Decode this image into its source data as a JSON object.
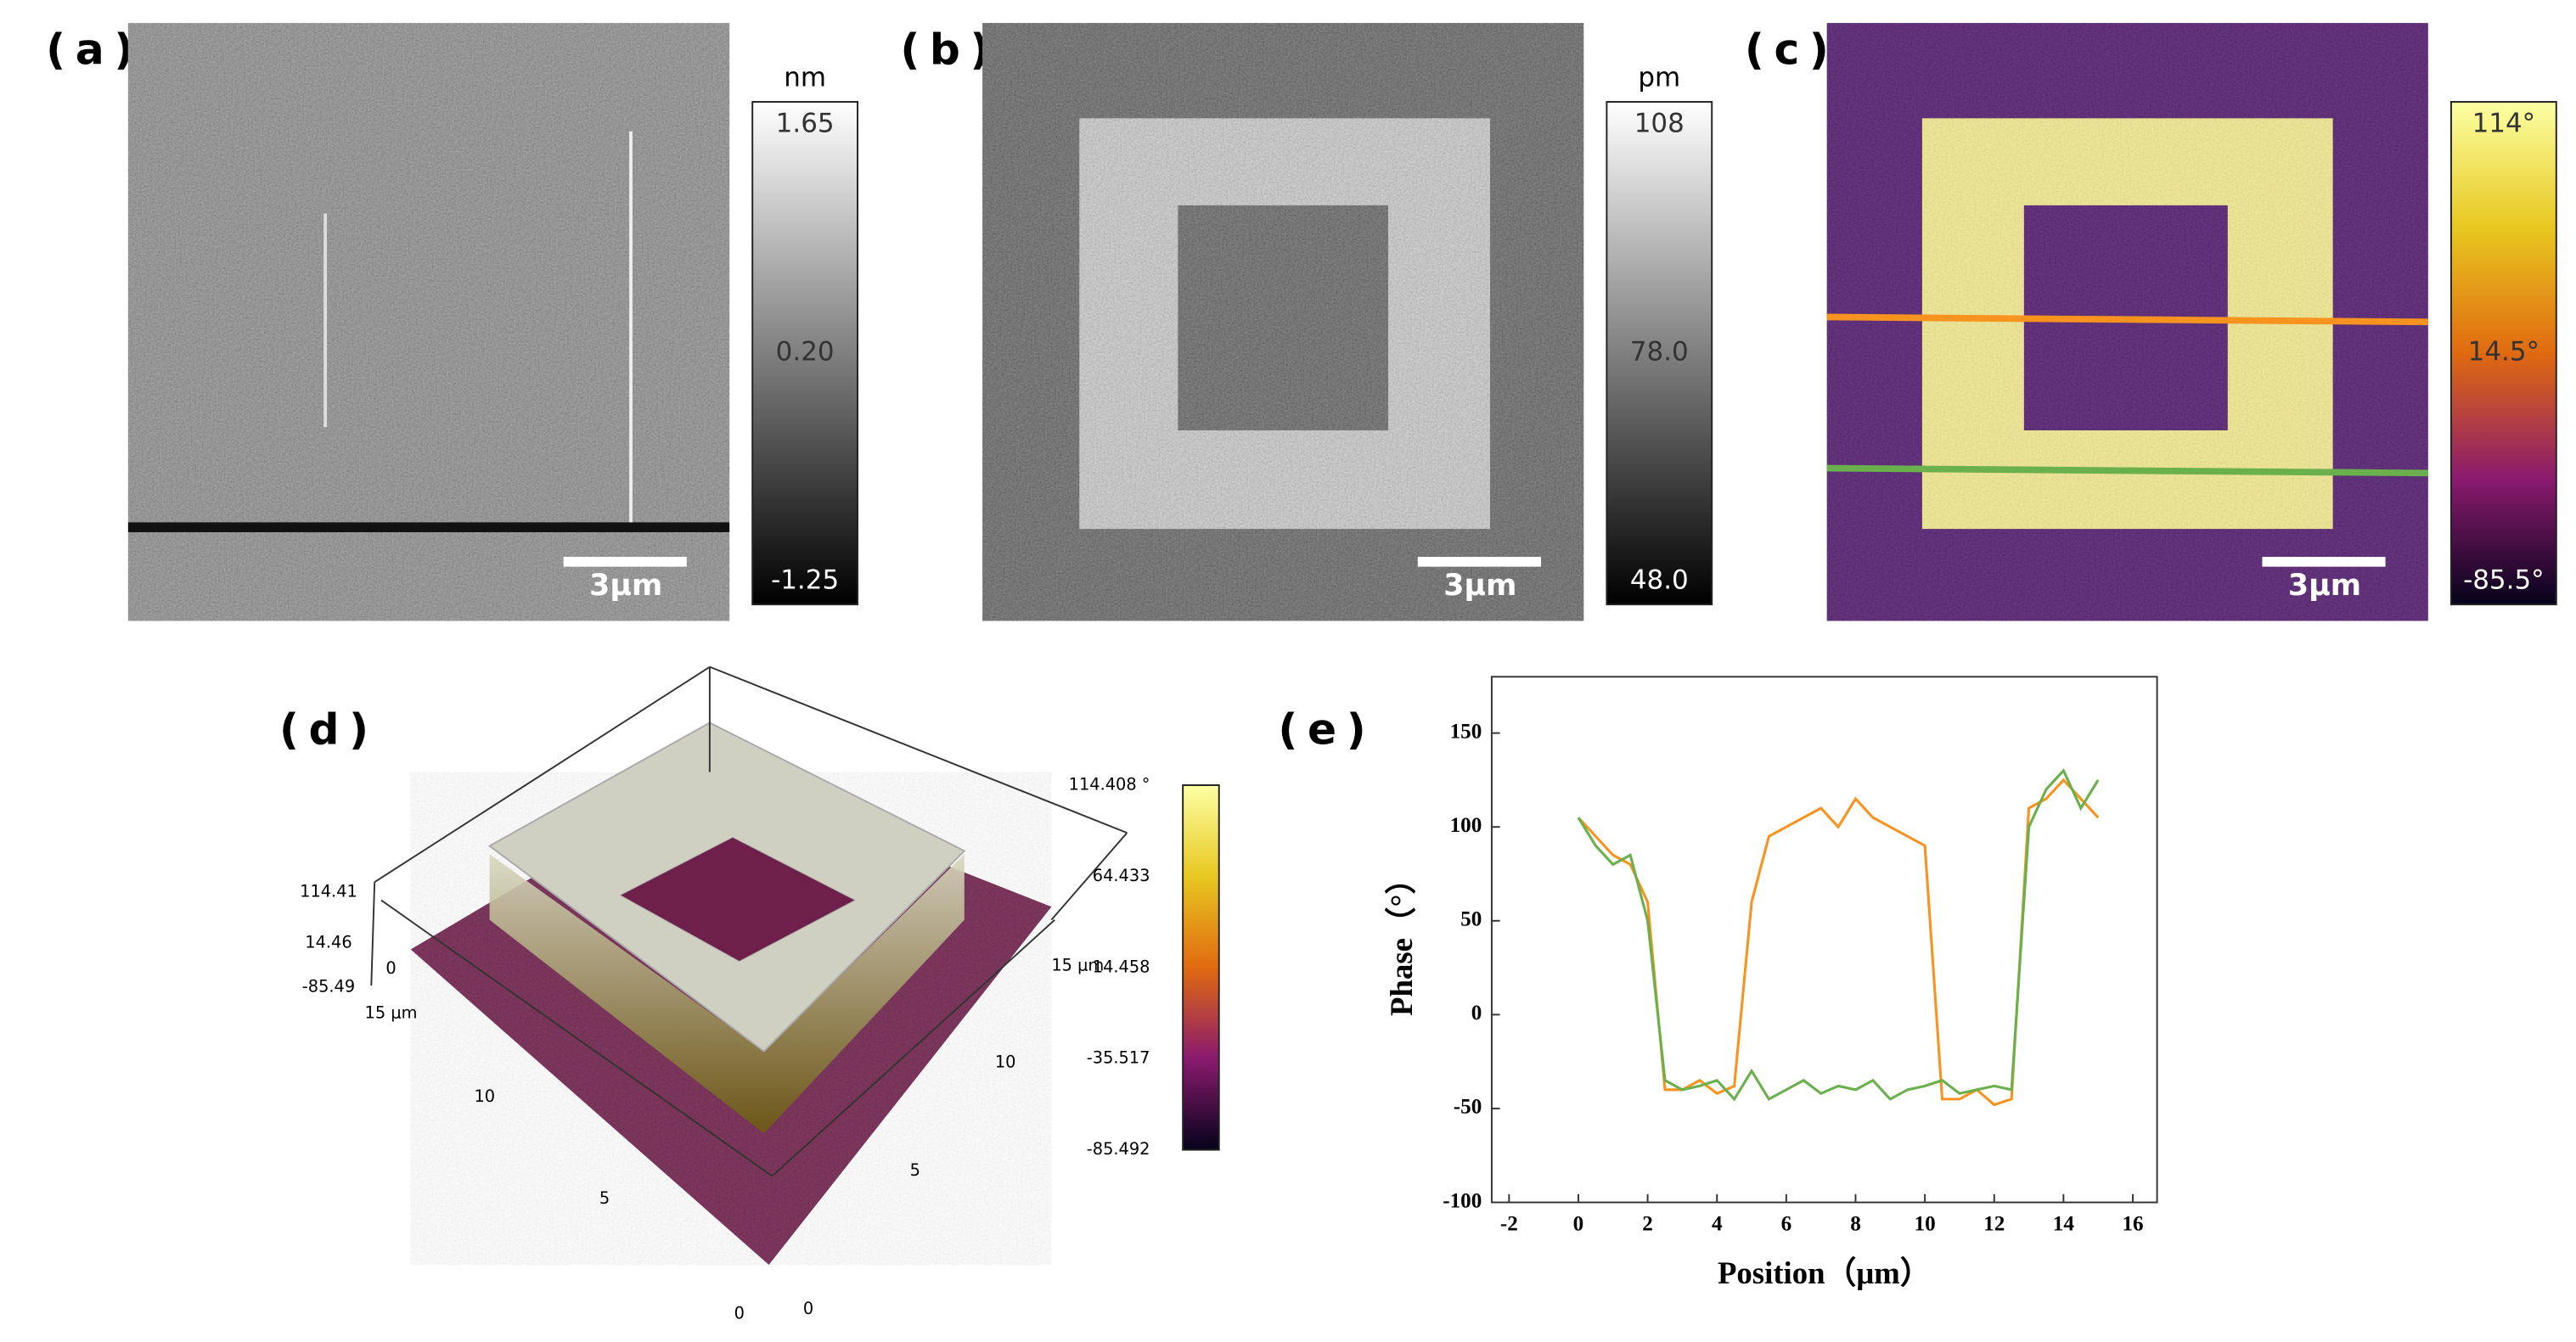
{
  "panels": [
    {
      "label": "(a)",
      "unit": "nm",
      "colorbar_ticks": [
        "1.65",
        "0.20",
        "-1.25"
      ],
      "scale_bar": "3μm"
    },
    {
      "label": "(b)",
      "unit": "pm",
      "colorbar_ticks": [
        "108",
        "78.0",
        "48.0"
      ],
      "scale_bar": "3μm"
    },
    {
      "label": "(c)",
      "colorbar_ticks": [
        "114°",
        "14.5°",
        "-85.5°"
      ],
      "scale_bar": "3μm"
    }
  ],
  "panel_d": {
    "label": "(d)",
    "z_ticks": [
      "114.41",
      "14.46",
      "0",
      "-85.49",
      "15 μm"
    ],
    "left_ticks": [
      "10",
      "5",
      "0"
    ],
    "right_ticks": [
      "0",
      "5",
      "10",
      "15 μm"
    ],
    "colorbar_ticks": [
      "114.408 °",
      "64.433",
      "14.458",
      "-35.517",
      "-85.492"
    ]
  },
  "chart_data": {
    "type": "line",
    "label": "(e)",
    "x_label": "Position（μm）",
    "y_label": "Phase（°）",
    "x": [
      0,
      0.5,
      1,
      1.5,
      2,
      2.5,
      3,
      3.5,
      4,
      4.5,
      5,
      5.5,
      6,
      6.5,
      7,
      7.5,
      8,
      8.5,
      9,
      9.5,
      10,
      10.5,
      11,
      11.5,
      12,
      12.5,
      13,
      13.5,
      14,
      14.5,
      15
    ],
    "series": [
      {
        "color": "#f7931e",
        "values": [
          105,
          95,
          85,
          80,
          60,
          -40,
          -40,
          -35,
          -42,
          -38,
          60,
          95,
          100,
          105,
          110,
          100,
          115,
          105,
          100,
          95,
          90,
          -45,
          -45,
          -40,
          -48,
          -45,
          110,
          115,
          125,
          115,
          105
        ]
      },
      {
        "color": "#6ab04c",
        "values": [
          105,
          90,
          80,
          85,
          50,
          -35,
          -40,
          -38,
          -35,
          -45,
          -30,
          -45,
          -40,
          -35,
          -42,
          -38,
          -40,
          -35,
          -45,
          -40,
          -38,
          -35,
          -42,
          -40,
          -38,
          -40,
          100,
          120,
          130,
          110,
          125
        ]
      }
    ],
    "xlim": [
      -2.5,
      16.7
    ],
    "xticks": [
      -2,
      0,
      2,
      4,
      6,
      8,
      10,
      12,
      14,
      16
    ],
    "ylim": [
      -100,
      180
    ],
    "yticks": [
      -100,
      -50,
      0,
      50,
      100,
      150
    ]
  }
}
